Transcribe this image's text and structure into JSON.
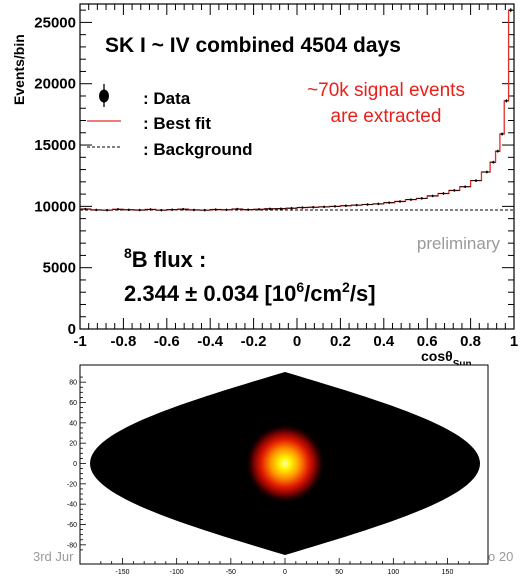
{
  "footer": {
    "left": "3rd Jur",
    "right": "o 20"
  },
  "chart_data": [
    {
      "type": "line",
      "title": "SK I ~ IV combined 4504 days",
      "ylabel": "Events/bin",
      "xlabel_main": "cosθ",
      "xlabel_sub": "Sun",
      "xlim": [
        -1,
        1
      ],
      "ylim": [
        0,
        26500
      ],
      "xticks": [
        -1,
        -0.8,
        -0.6,
        -0.4,
        -0.2,
        0,
        0.2,
        0.4,
        0.6,
        0.8,
        1
      ],
      "xtick_labels": [
        "-1",
        "-0.8",
        "-0.6",
        "-0.4",
        "-0.2",
        "0",
        "0.2",
        "0.4",
        "0.6",
        "0.8",
        "1"
      ],
      "yticks": [
        0,
        5000,
        10000,
        15000,
        20000,
        25000
      ],
      "ytick_labels": [
        "0",
        "5000",
        "10000",
        "15000",
        "20000",
        "25000"
      ],
      "legend": {
        "placement": "top-left",
        "entries": [
          {
            "marker": "dot-errorbar",
            "label": ": Data"
          },
          {
            "marker": "red-line",
            "label": ": Best fit"
          },
          {
            "marker": "dashed-line",
            "label": ": Background"
          }
        ]
      },
      "annotations": {
        "signal_line1": "~70k signal events",
        "signal_line2": "are extracted",
        "flux_line1_sup": "8",
        "flux_line1_rest": "B flux :",
        "flux_line2_a": "2.344 ± 0.034 [10",
        "flux_line2_sup1": "6",
        "flux_line2_b": "/cm",
        "flux_line2_sup2": "2",
        "flux_line2_c": "/s]",
        "preliminary": "preliminary"
      },
      "colors": {
        "fit": "#e0302a",
        "data": "#000000",
        "background": "#000000",
        "signal_text": "#e8201a",
        "preliminary": "#9a9a9a"
      },
      "background_level": 9700,
      "series": [
        {
          "name": "Data",
          "x": [
            -0.975,
            -0.925,
            -0.875,
            -0.825,
            -0.775,
            -0.725,
            -0.675,
            -0.625,
            -0.575,
            -0.525,
            -0.475,
            -0.425,
            -0.375,
            -0.325,
            -0.275,
            -0.225,
            -0.175,
            -0.125,
            -0.075,
            -0.025,
            0.025,
            0.075,
            0.125,
            0.175,
            0.225,
            0.275,
            0.325,
            0.375,
            0.425,
            0.475,
            0.525,
            0.575,
            0.625,
            0.675,
            0.725,
            0.775,
            0.825,
            0.875,
            0.905,
            0.925,
            0.945,
            0.965,
            0.985
          ],
          "values": [
            9780,
            9710,
            9690,
            9760,
            9720,
            9700,
            9750,
            9690,
            9730,
            9770,
            9710,
            9690,
            9740,
            9720,
            9780,
            9730,
            9760,
            9800,
            9810,
            9850,
            9900,
            9930,
            9960,
            10000,
            10050,
            10100,
            10150,
            10200,
            10300,
            10400,
            10550,
            10650,
            10850,
            11050,
            11300,
            11600,
            12100,
            12800,
            13600,
            14500,
            15900,
            18600,
            26000
          ]
        }
      ]
    },
    {
      "type": "heatmap",
      "xlim": [
        -180,
        180
      ],
      "ylim": [
        -90,
        90
      ],
      "xticks": [
        -150,
        -100,
        -50,
        0,
        50,
        100,
        150
      ],
      "xtick_labels": [
        "-150",
        "-100",
        "-50",
        "0",
        "50",
        "100",
        "150"
      ],
      "yticks": [
        -80,
        -60,
        -40,
        -20,
        0,
        20,
        40,
        60,
        80
      ],
      "ytick_labels": [
        "-80",
        "-60",
        "-40",
        "-20",
        "0",
        "20",
        "40",
        "60",
        "80"
      ],
      "projection": "sinusoidal",
      "hotspot": {
        "x": 0,
        "y": 0
      }
    }
  ]
}
